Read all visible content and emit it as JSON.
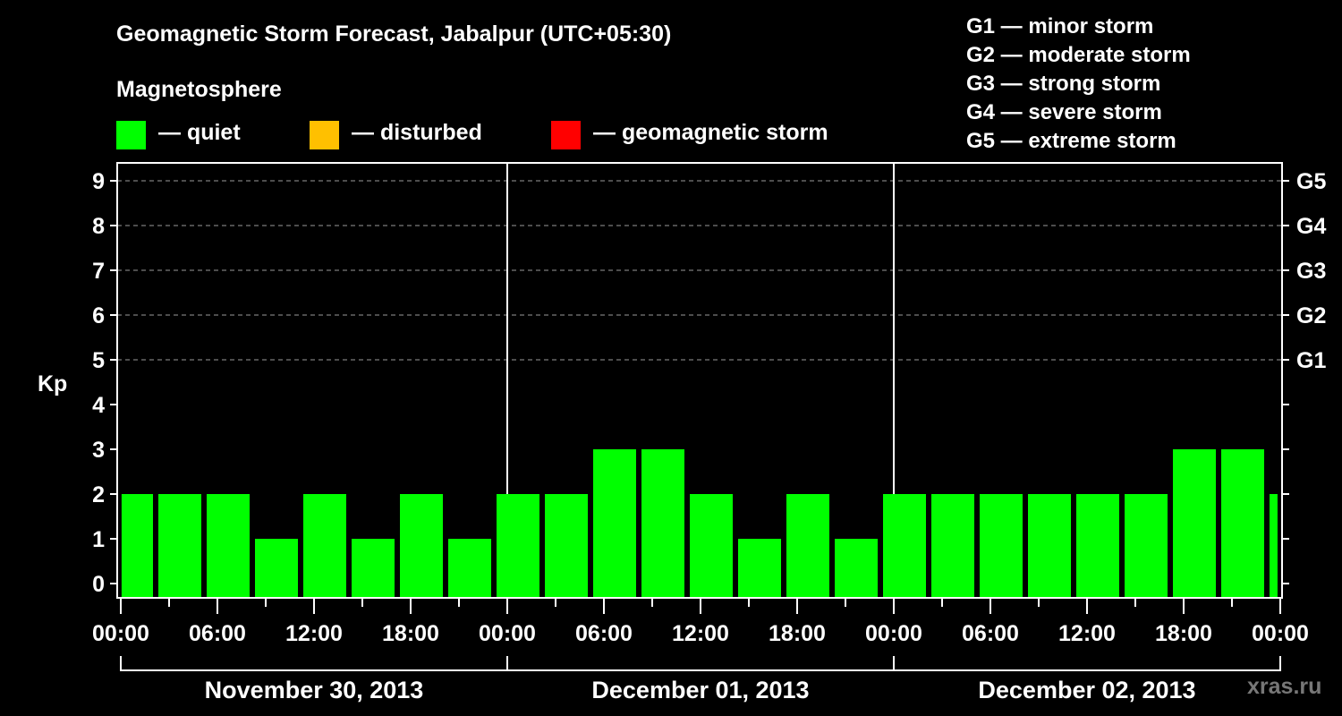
{
  "header": {
    "title": "Geomagnetic Storm Forecast, Jabalpur (UTC+05:30)",
    "subtitle": "Magnetosphere"
  },
  "legend": [
    {
      "label": "— quiet",
      "color": "#00ff00"
    },
    {
      "label": "— disturbed",
      "color": "#ffc000"
    },
    {
      "label": "— geomagnetic storm",
      "color": "#ff0000"
    }
  ],
  "storm_levels": [
    {
      "label": "G1 — minor storm"
    },
    {
      "label": "G2 — moderate storm"
    },
    {
      "label": "G3 — strong storm"
    },
    {
      "label": "G4 — severe storm"
    },
    {
      "label": "G5 — extreme storm"
    }
  ],
  "watermark": "xras.ru",
  "chart_data": {
    "type": "bar",
    "title": "Geomagnetic Storm Forecast, Jabalpur (UTC+05:30)",
    "xlabel": "",
    "ylabel": "Kp",
    "ylim": [
      0,
      9
    ],
    "grid": {
      "y_dashed_from": 5,
      "y_dashed_to": 9
    },
    "y_ticks": [
      0,
      1,
      2,
      3,
      4,
      5,
      6,
      7,
      8,
      9
    ],
    "right_axis_labels": [
      {
        "kp": 5,
        "label": "G1"
      },
      {
        "kp": 6,
        "label": "G2"
      },
      {
        "kp": 7,
        "label": "G3"
      },
      {
        "kp": 8,
        "label": "G4"
      },
      {
        "kp": 9,
        "label": "G5"
      }
    ],
    "x_tick_labels": [
      "00:00",
      "06:00",
      "12:00",
      "18:00",
      "00:00",
      "06:00",
      "12:00",
      "18:00",
      "00:00",
      "06:00",
      "12:00",
      "18:00",
      "00:00"
    ],
    "days": [
      "November 30, 2013",
      "December 01, 2013",
      "December 02, 2013"
    ],
    "bar_interval_hours": 3,
    "bar_start_offset_hours": -1.0,
    "categories": [
      "Nov 30 ~00:00",
      "Nov 30 ~03:00",
      "Nov 30 ~06:00",
      "Nov 30 ~09:00",
      "Nov 30 ~12:00",
      "Nov 30 ~15:00",
      "Nov 30 ~18:00",
      "Nov 30 ~21:00",
      "Dec 01 ~00:00",
      "Dec 01 ~03:00",
      "Dec 01 ~06:00",
      "Dec 01 ~09:00",
      "Dec 01 ~12:00",
      "Dec 01 ~15:00",
      "Dec 01 ~18:00",
      "Dec 01 ~21:00",
      "Dec 02 ~00:00",
      "Dec 02 ~03:00",
      "Dec 02 ~06:00",
      "Dec 02 ~09:00",
      "Dec 02 ~12:00",
      "Dec 02 ~15:00",
      "Dec 02 ~18:00",
      "Dec 02 ~21:00",
      "Dec 03 ~00:00"
    ],
    "values": [
      2,
      2,
      2,
      1,
      2,
      1,
      2,
      1,
      2,
      2,
      3,
      3,
      2,
      1,
      2,
      1,
      2,
      2,
      2,
      2,
      2,
      2,
      3,
      3,
      2
    ],
    "bar_color": "#00ff00"
  }
}
